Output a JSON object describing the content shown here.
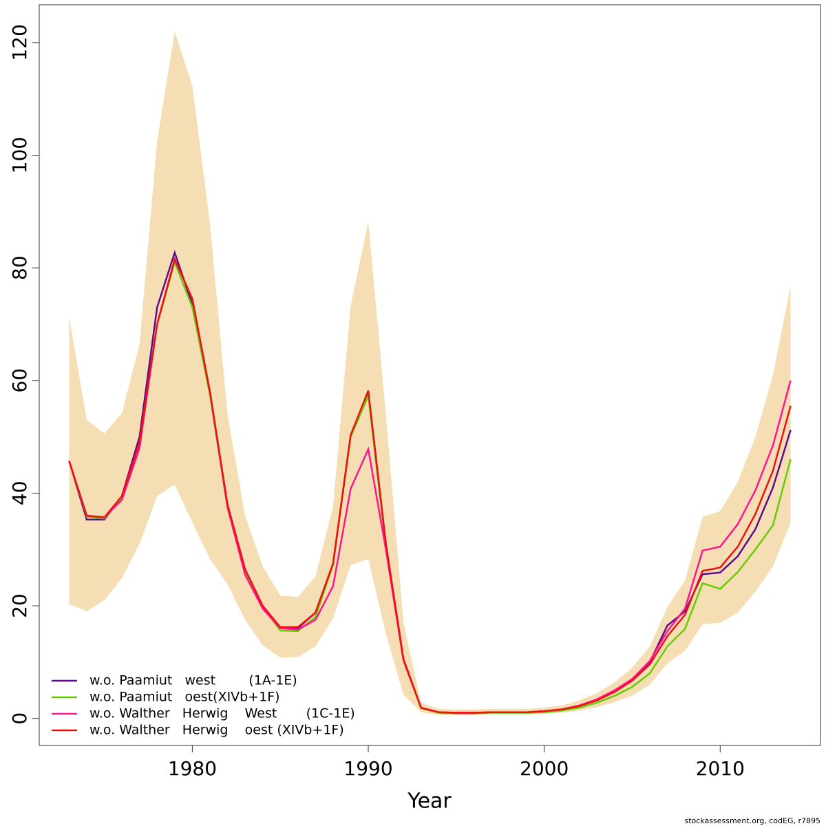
{
  "chart_data": {
    "type": "line",
    "x_label": "Year",
    "footnote": "stockassessment.org, codEG, r7895",
    "x": [
      1973,
      1974,
      1975,
      1976,
      1977,
      1978,
      1979,
      1980,
      1981,
      1982,
      1983,
      1984,
      1985,
      1986,
      1987,
      1988,
      1989,
      1990,
      1991,
      1992,
      1993,
      1994,
      1995,
      1996,
      1997,
      1998,
      1999,
      2000,
      2001,
      2002,
      2003,
      2004,
      2005,
      2006,
      2007,
      2008,
      2009,
      2010,
      2011,
      2012,
      2013,
      2014
    ],
    "xlim": [
      1971.3,
      2015.7
    ],
    "xticks": [
      1980,
      1990,
      2000,
      2010
    ],
    "ylim": [
      -4.8,
      126.7
    ],
    "yticks": [
      0,
      20,
      40,
      60,
      80,
      100,
      120
    ],
    "band": {
      "color": "#f5deb3",
      "upper": [
        71.3,
        53,
        50.6,
        54.2,
        66.5,
        102.5,
        122,
        112.3,
        88,
        54,
        36,
        27,
        21.8,
        21.6,
        25.2,
        37.7,
        73.3,
        88.2,
        54,
        17,
        2.8,
        1.7,
        1.6,
        1.6,
        1.7,
        1.7,
        1.7,
        1.9,
        2.3,
        3.2,
        4.5,
        6.4,
        9,
        12.8,
        19.8,
        24.5,
        35.8,
        36.8,
        42,
        50,
        61,
        76.8
      ],
      "lower": [
        20.3,
        19,
        21,
        24.9,
        31,
        39.5,
        41.5,
        34.8,
        28.3,
        23.8,
        17.5,
        13,
        10.8,
        10.9,
        12.8,
        17.8,
        27.2,
        28.3,
        15,
        4.2,
        1.1,
        0.6,
        0.6,
        0.6,
        0.7,
        0.7,
        0.7,
        0.8,
        1,
        1.4,
        2,
        2.9,
        4,
        6,
        9.8,
        12,
        16.7,
        17,
        18.8,
        22.5,
        27,
        34.7
      ]
    },
    "legend": "bottom-left",
    "series": [
      {
        "name": "w.o. Paamiut   west        (1A-1E)",
        "color": "#5e0a8c",
        "values": [
          45.7,
          35.3,
          35.3,
          39.5,
          50,
          73,
          82.7,
          73.5,
          58,
          37.5,
          26,
          19.8,
          16,
          16,
          18.8,
          27.5,
          50.3,
          58,
          31,
          10.5,
          1.9,
          1.1,
          1,
          1,
          1.1,
          1.1,
          1.1,
          1.3,
          1.6,
          2.2,
          3.3,
          4.9,
          7,
          10,
          16.5,
          19,
          25.6,
          25.9,
          28.8,
          33.6,
          41,
          51.2
        ]
      },
      {
        "name": "w.o. Paamiut   oest(XIVb+1F)",
        "color": "#66cc00",
        "values": [
          45.7,
          35.8,
          35.5,
          39.3,
          49,
          70,
          81,
          73,
          57.5,
          37.5,
          26,
          19.8,
          15.6,
          15.5,
          18,
          27.3,
          50,
          57.3,
          30.5,
          10.3,
          1.8,
          1,
          0.9,
          0.9,
          1,
          1,
          1,
          1.1,
          1.4,
          1.9,
          2.8,
          4,
          5.6,
          8,
          12.8,
          15.9,
          24,
          23,
          26,
          30,
          34.3,
          46
        ]
      },
      {
        "name": "w.o. Walther   Herwig    West       (1C-1E)",
        "color": "#ff1493",
        "values": [
          45.7,
          36,
          35.7,
          38.8,
          48,
          70,
          81.5,
          74.5,
          58,
          37.5,
          25.5,
          19.5,
          16,
          15.8,
          17.5,
          23.5,
          40.8,
          47.8,
          30,
          10.3,
          1.9,
          1.1,
          1,
          1,
          1.1,
          1.1,
          1.1,
          1.3,
          1.6,
          2.3,
          3.4,
          5,
          7,
          10.2,
          15.5,
          19.5,
          29.8,
          30.5,
          34.5,
          40.5,
          48.5,
          60
        ]
      },
      {
        "name": "w.o. Walther   Herwig    oest (XIVb+1F)",
        "color": "#ee1111",
        "values": [
          45.7,
          36,
          35.7,
          39.5,
          49,
          70,
          81.5,
          74.5,
          58,
          38,
          26.5,
          20,
          16.2,
          16.2,
          18.8,
          27.5,
          50.3,
          58.2,
          31,
          10.5,
          1.9,
          1.1,
          1,
          1,
          1.1,
          1.1,
          1.1,
          1.3,
          1.6,
          2.2,
          3.2,
          4.7,
          6.7,
          9.6,
          14.6,
          18.4,
          26.2,
          26.8,
          30.5,
          36.3,
          44,
          55.5
        ]
      }
    ]
  }
}
